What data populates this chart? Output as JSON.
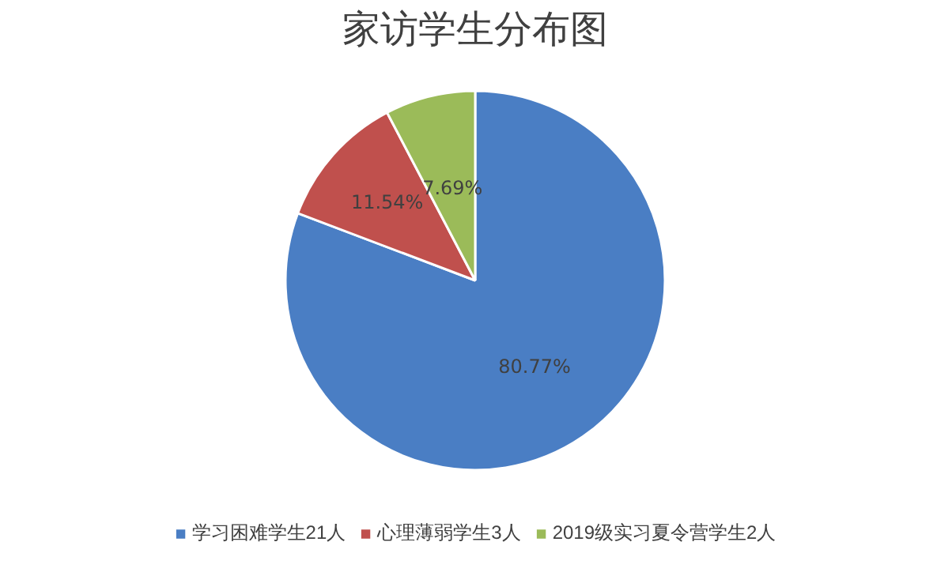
{
  "chart_data": {
    "type": "pie",
    "title": "家访学生分布图",
    "categories": [
      "学习困难学生21人",
      "心理薄弱学生3人",
      "2019级实习夏令营学生2人"
    ],
    "values": [
      80.77,
      11.54,
      7.69
    ],
    "colors": [
      "#4a7ec4",
      "#c0504d",
      "#9bbb59"
    ],
    "value_labels": [
      "80.77%",
      "11.54%",
      "7.69%"
    ],
    "legend": "bottom"
  }
}
